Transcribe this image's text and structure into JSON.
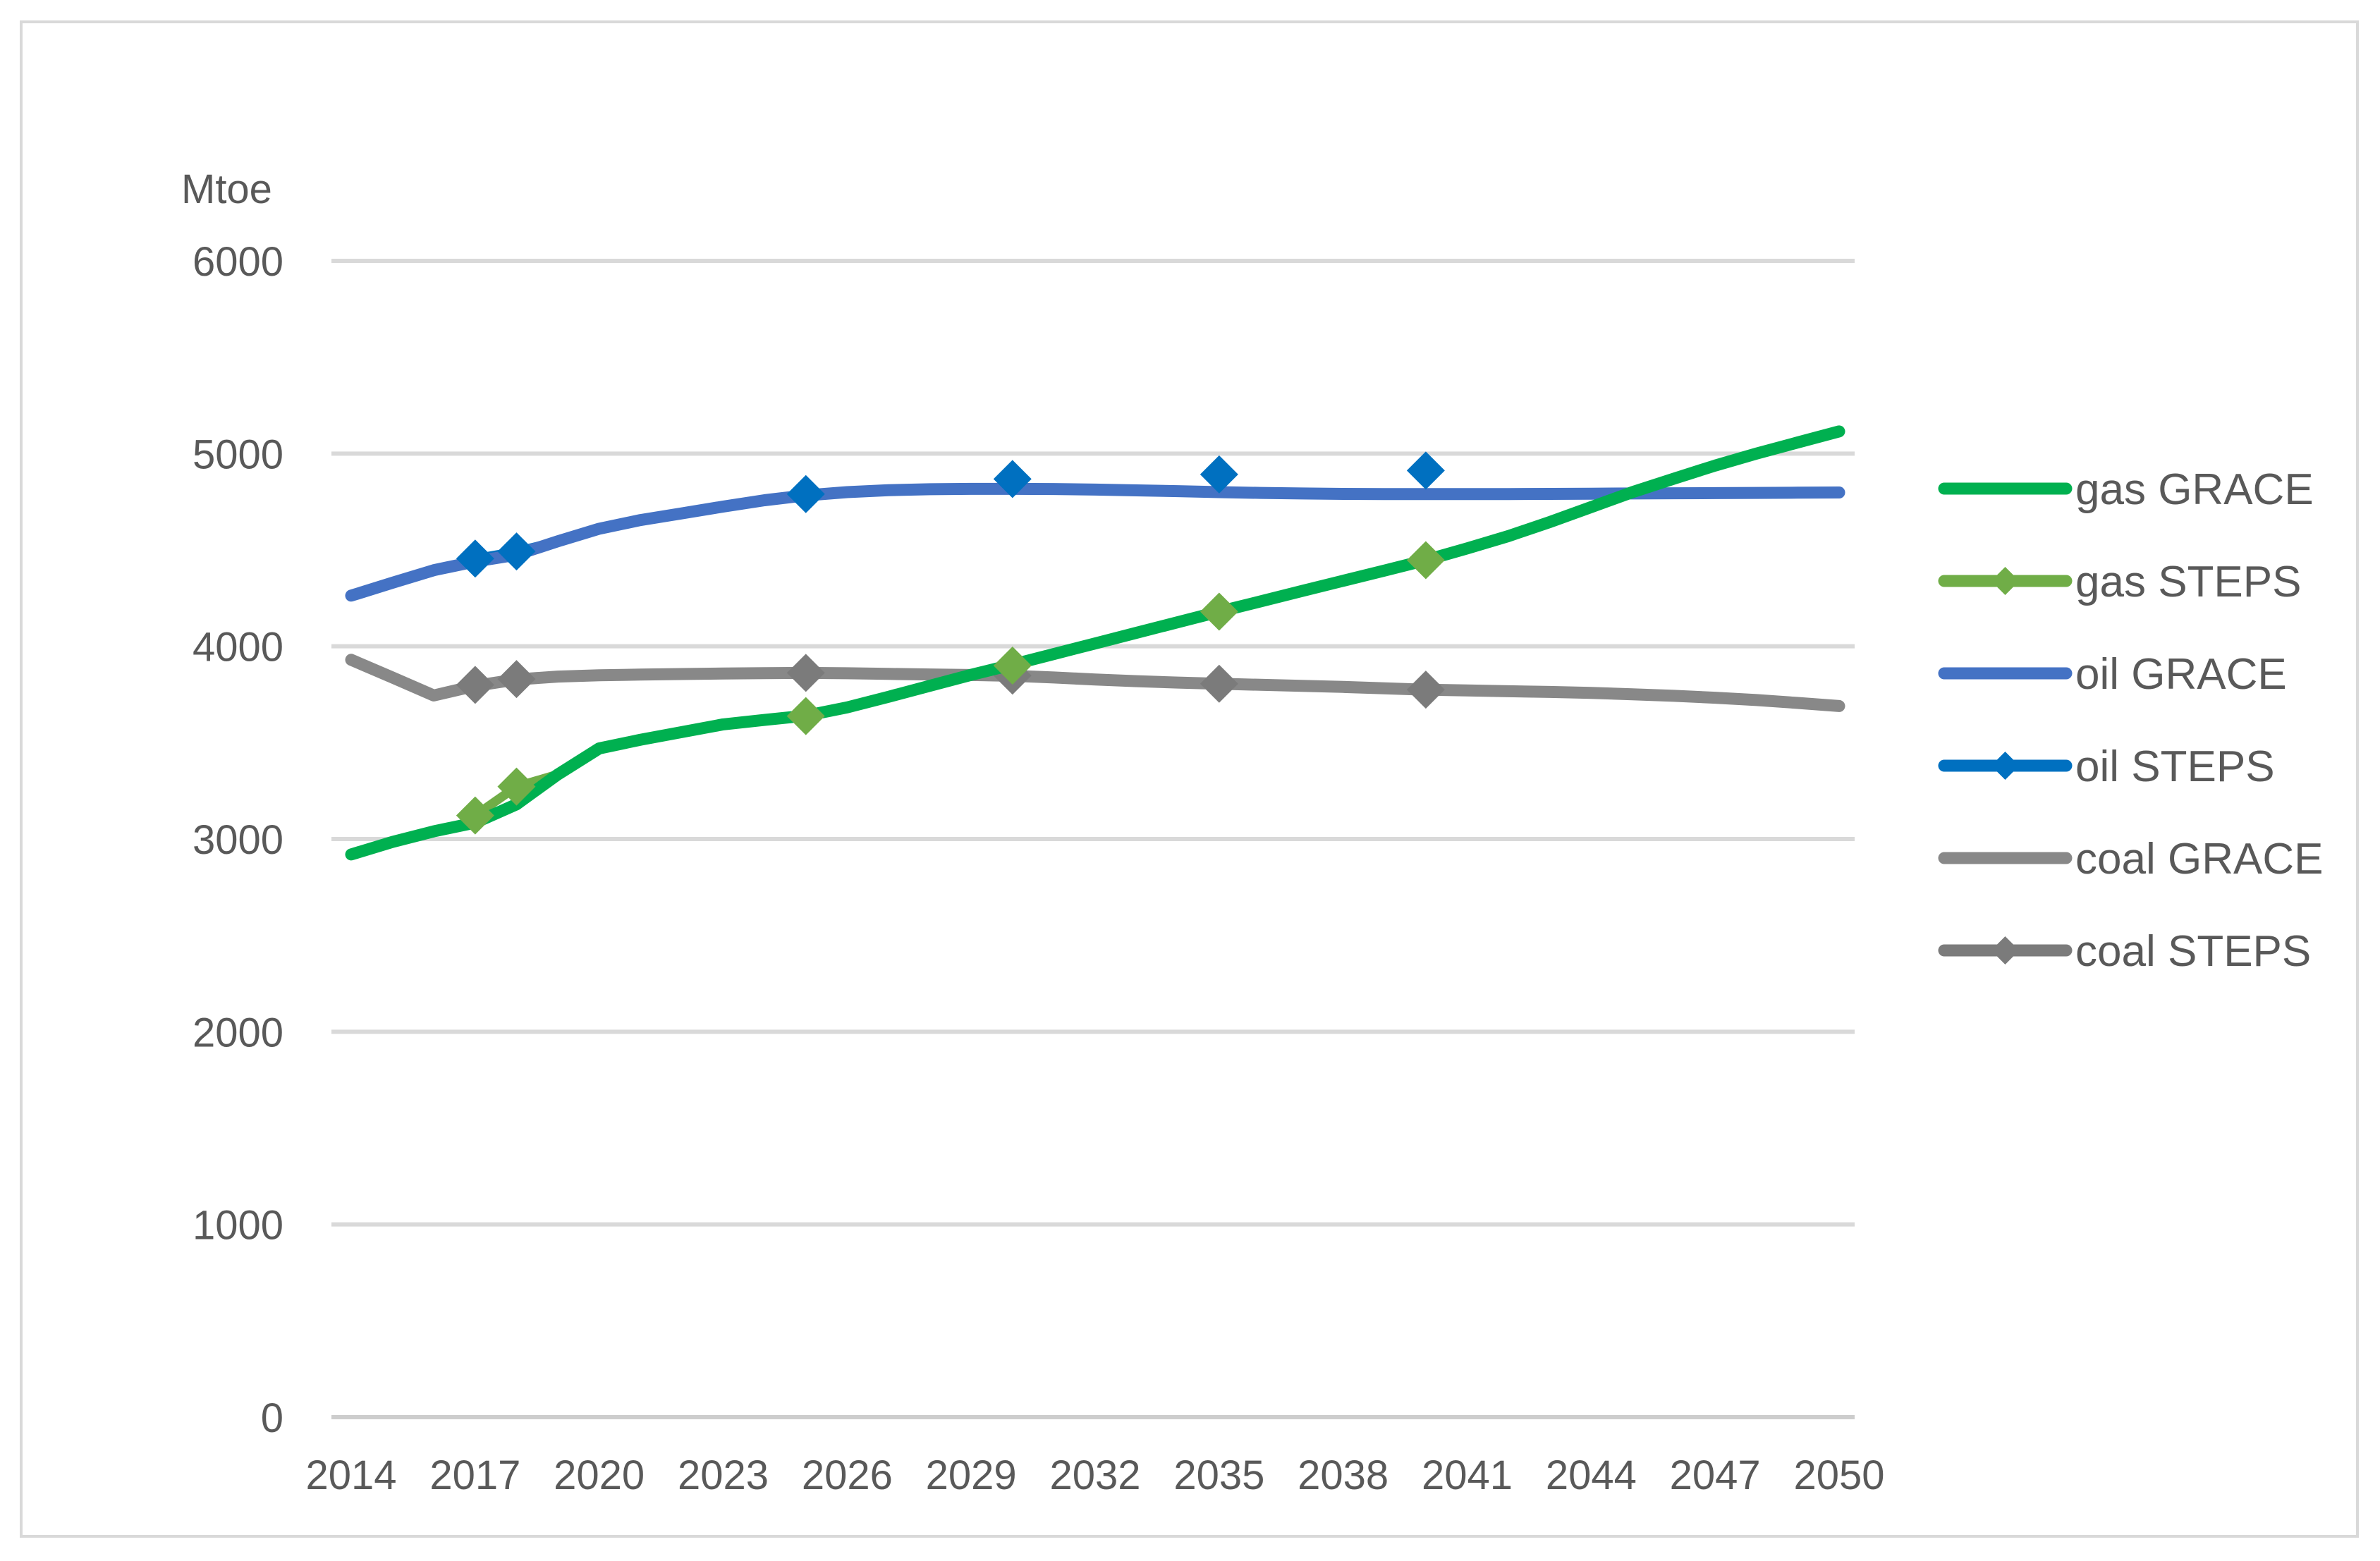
{
  "chart_data": {
    "type": "line",
    "title": "",
    "ylabel": "Mtoe",
    "xlabel": "",
    "ylim": [
      0,
      6000
    ],
    "xlim": [
      2014,
      2050
    ],
    "grid": true,
    "legend_position": "right",
    "y_ticks": [
      0,
      1000,
      2000,
      3000,
      4000,
      5000,
      6000
    ],
    "x_ticks": [
      2014,
      2017,
      2020,
      2023,
      2026,
      2029,
      2032,
      2035,
      2038,
      2041,
      2044,
      2047,
      2050
    ],
    "years": [
      2014,
      2015,
      2016,
      2017,
      2018,
      2019,
      2020,
      2021,
      2022,
      2023,
      2024,
      2025,
      2026,
      2027,
      2028,
      2029,
      2030,
      2031,
      2032,
      2033,
      2034,
      2035,
      2036,
      2037,
      2038,
      2039,
      2040,
      2041,
      2042,
      2043,
      2044,
      2045,
      2046,
      2047,
      2048,
      2049,
      2050
    ],
    "series": [
      {
        "name": "gas GRACE",
        "fuel": "gas",
        "variant": "GRACE",
        "color": "#00B050",
        "marker": "none",
        "values": [
          2920,
          2985,
          3040,
          3085,
          3180,
          3335,
          3470,
          3515,
          3555,
          3595,
          3618,
          3640,
          3683,
          3738,
          3795,
          3852,
          3905,
          3960,
          4015,
          4070,
          4125,
          4180,
          4233,
          4287,
          4340,
          4393,
          4447,
          4508,
          4572,
          4645,
          4722,
          4800,
          4870,
          4938,
          5000,
          5058,
          5115
        ]
      },
      {
        "name": "gas STEPS",
        "fuel": "gas",
        "variant": "STEPS",
        "color": "#70AD47",
        "marker": "diamond",
        "marker_years": [
          2017,
          2018,
          2025,
          2030,
          2035,
          2040
        ],
        "marker_values": [
          3122,
          3272,
          3638,
          3900,
          4180,
          4447
        ]
      },
      {
        "name": "oil GRACE",
        "fuel": "oil",
        "variant": "GRACE",
        "color": "#4472C4",
        "marker": "none",
        "values": [
          4263,
          4330,
          4395,
          4440,
          4475,
          4545,
          4610,
          4655,
          4690,
          4725,
          4758,
          4783,
          4800,
          4810,
          4815,
          4817,
          4817,
          4816,
          4813,
          4809,
          4805,
          4800,
          4796,
          4793,
          4791,
          4790,
          4790,
          4790,
          4790,
          4791,
          4792,
          4793,
          4794,
          4795,
          4796,
          4797,
          4798
        ]
      },
      {
        "name": "oil STEPS",
        "fuel": "oil",
        "variant": "STEPS",
        "color": "#0070C0",
        "marker": "diamond",
        "marker_years": [
          2017,
          2018,
          2025,
          2030,
          2035,
          2040
        ],
        "marker_values": [
          4455,
          4492,
          4790,
          4868,
          4892,
          4912
        ]
      },
      {
        "name": "coal GRACE",
        "fuel": "coal",
        "variant": "GRACE",
        "color": "#888888",
        "marker": "none",
        "values": [
          3930,
          3838,
          3745,
          3795,
          3828,
          3843,
          3850,
          3853,
          3856,
          3859,
          3861,
          3862,
          3860,
          3857,
          3854,
          3851,
          3847,
          3838,
          3828,
          3819,
          3812,
          3806,
          3800,
          3795,
          3789,
          3782,
          3775,
          3771,
          3767,
          3763,
          3758,
          3751,
          3743,
          3733,
          3721,
          3706,
          3690
        ]
      },
      {
        "name": "coal STEPS",
        "fuel": "coal",
        "variant": "STEPS",
        "color": "#7B7B7B",
        "marker": "diamond",
        "marker_years": [
          2017,
          2018,
          2025,
          2030,
          2035,
          2040
        ],
        "marker_values": [
          3800,
          3830,
          3862,
          3848,
          3806,
          3775
        ]
      }
    ]
  },
  "legend": {
    "items": [
      {
        "label": "gas GRACE",
        "swatch": "line",
        "color": "#00B050"
      },
      {
        "label": "gas STEPS",
        "swatch": "line-diamond",
        "color": "#70AD47"
      },
      {
        "label": "oil GRACE",
        "swatch": "line",
        "color": "#4472C4"
      },
      {
        "label": "oil STEPS",
        "swatch": "line-diamond",
        "color": "#0070C0"
      },
      {
        "label": "coal GRACE",
        "swatch": "line",
        "color": "#888888"
      },
      {
        "label": "coal STEPS",
        "swatch": "line-diamond",
        "color": "#7B7B7B"
      }
    ]
  },
  "colors": {
    "gridline": "#D9D9D9",
    "zero_line": "#CDCDCD",
    "text": "#595959",
    "border": "#D9D9D9",
    "background": "#FFFFFF"
  }
}
